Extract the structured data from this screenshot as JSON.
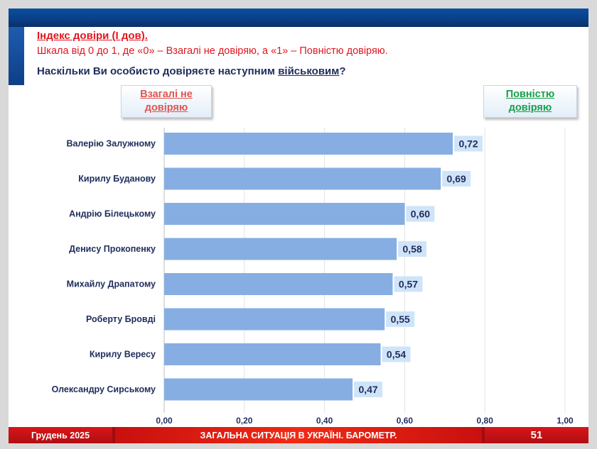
{
  "header": {
    "index_title": "Індекс довіри (І дов).",
    "scale_note": "Шкала від 0 до 1, де «0» – Взагалі не довіряю, а «1» – Повністю довіряю.",
    "question_prefix": "Наскільки Ви особисто довіряєте наступним ",
    "question_emphasis": "військовим",
    "question_suffix": "?"
  },
  "legend": {
    "low_label": "Взагалі не\nдовіряю",
    "high_label": "Повністю\nдовіряю",
    "low_color": "#e05550",
    "high_color": "#1aa04a"
  },
  "chart_data": {
    "type": "bar",
    "orientation": "horizontal",
    "categories": [
      "Валерію Залужному",
      "Кирилу Буданову",
      "Андрію Білецькому",
      "Денису Прокопенку",
      "Михайлу Драпатому",
      "Роберту Бровді",
      "Кирилу Вересу",
      "Олександру Сирському"
    ],
    "values": [
      0.72,
      0.69,
      0.6,
      0.58,
      0.57,
      0.55,
      0.54,
      0.47
    ],
    "value_labels": [
      "0,72",
      "0,69",
      "0,60",
      "0,58",
      "0,57",
      "0,55",
      "0,54",
      "0,47"
    ],
    "xlim": [
      0,
      1
    ],
    "x_ticks": [
      "0,00",
      "0,20",
      "0,40",
      "0,60",
      "0,80",
      "1,00"
    ],
    "grid": true,
    "bar_color": "#86aee2",
    "label_bg_color": "#cfe4f8",
    "label_text_color": "#1f2d5c"
  },
  "footer": {
    "date": "Грудень 2025",
    "title": "ЗАГАЛЬНА СИТУАЦІЯ В УКРАЇНІ. БАРОМЕТР.",
    "page": "51"
  }
}
